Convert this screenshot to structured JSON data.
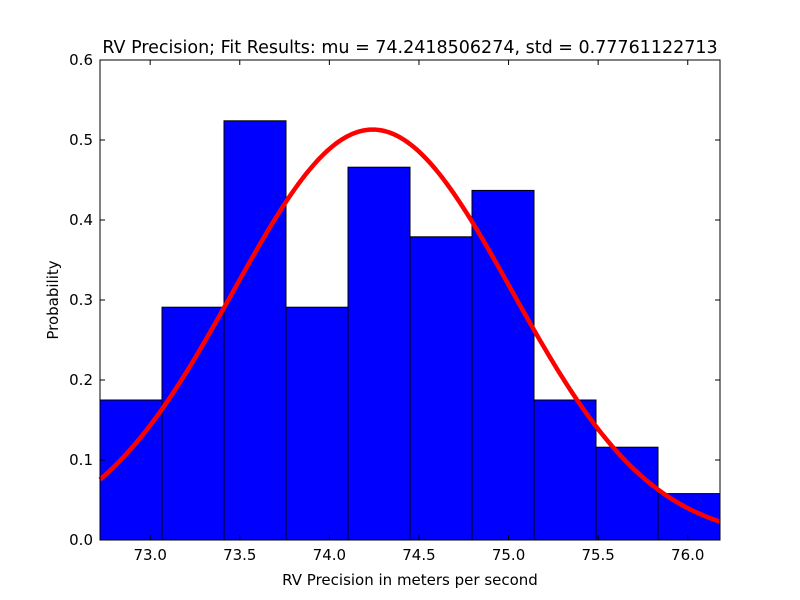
{
  "chart_data": {
    "type": "bar",
    "title": "RV Precision; Fit Results: mu = 74.2418506274, std = 0.77761122713",
    "xlabel": "RV Precision in meters per second",
    "ylabel": "Probability",
    "xlim": [
      72.72,
      76.18
    ],
    "ylim": [
      0,
      0.6
    ],
    "xticks": [
      73.0,
      73.5,
      74.0,
      74.5,
      75.0,
      75.5,
      76.0
    ],
    "xtick_labels": [
      "73.0",
      "73.5",
      "74.0",
      "74.5",
      "75.0",
      "75.5",
      "76.0"
    ],
    "yticks": [
      0.0,
      0.1,
      0.2,
      0.3,
      0.4,
      0.5,
      0.6
    ],
    "ytick_labels": [
      "0.0",
      "0.1",
      "0.2",
      "0.3",
      "0.4",
      "0.5",
      "0.6"
    ],
    "bin_edges": [
      72.72,
      73.066,
      73.412,
      73.758,
      74.104,
      74.45,
      74.796,
      75.142,
      75.488,
      75.834,
      76.18
    ],
    "values": [
      0.175,
      0.291,
      0.524,
      0.291,
      0.466,
      0.379,
      0.437,
      0.175,
      0.116,
      0.058
    ],
    "fit": {
      "type": "normal",
      "mu": 74.2418506274,
      "std": 0.77761122713
    },
    "grid": false,
    "colors": {
      "bars": "#0000ff",
      "bar_edge": "#000000",
      "fit_line": "#ff0000"
    }
  }
}
